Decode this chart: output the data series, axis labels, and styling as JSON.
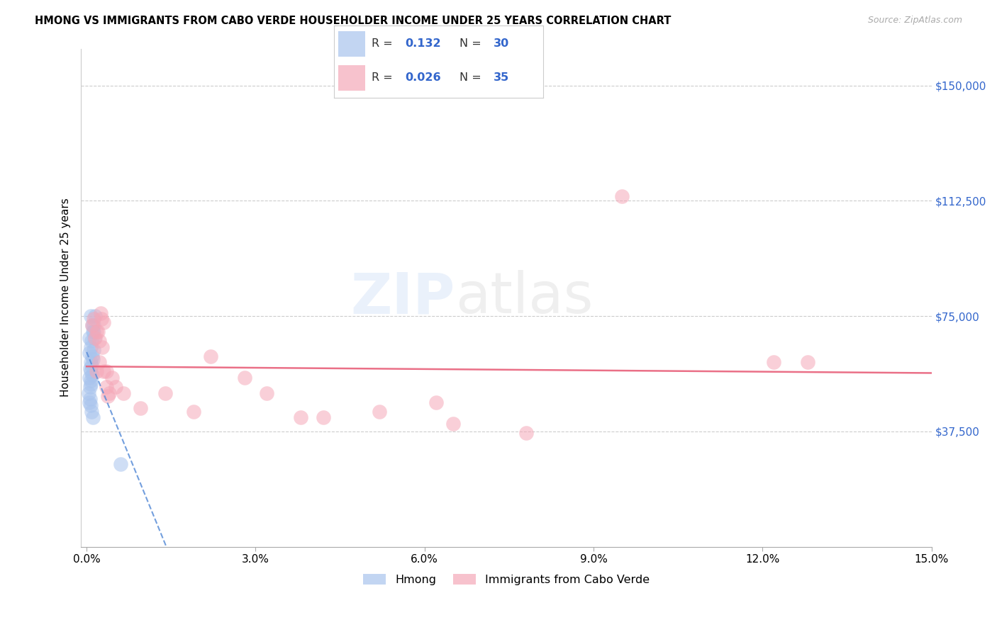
{
  "title": "HMONG VS IMMIGRANTS FROM CABO VERDE HOUSEHOLDER INCOME UNDER 25 YEARS CORRELATION CHART",
  "source": "Source: ZipAtlas.com",
  "ylabel": "Householder Income Under 25 years",
  "xlabel_ticks": [
    "0.0%",
    "3.0%",
    "6.0%",
    "9.0%",
    "12.0%",
    "15.0%"
  ],
  "xlabel_vals": [
    0.0,
    3.0,
    6.0,
    9.0,
    12.0,
    15.0
  ],
  "ytick_labels": [
    "$37,500",
    "$75,000",
    "$112,500",
    "$150,000"
  ],
  "ytick_vals": [
    37500,
    75000,
    112500,
    150000
  ],
  "ylim": [
    0,
    162000
  ],
  "xlim": [
    -0.1,
    15.0
  ],
  "legend1_R": "0.132",
  "legend1_N": "30",
  "legend2_R": "0.026",
  "legend2_N": "35",
  "blue_color": "#a8c4ed",
  "pink_color": "#f5a8b8",
  "blue_line_color": "#5b8ed8",
  "pink_line_color": "#e8607a",
  "grid_color": "#cccccc",
  "watermark": "ZIPatlas",
  "hmong_x": [
    0.05,
    0.08,
    0.1,
    0.12,
    0.05,
    0.07,
    0.09,
    0.11,
    0.13,
    0.15,
    0.06,
    0.08,
    0.1,
    0.12,
    0.14,
    0.05,
    0.07,
    0.09,
    0.11,
    0.06,
    0.08,
    0.1,
    0.04,
    0.06,
    0.08,
    0.05,
    0.07,
    0.09,
    0.11,
    0.6
  ],
  "hmong_y": [
    68000,
    75000,
    72000,
    70000,
    63000,
    65000,
    67000,
    70000,
    72000,
    75000,
    58000,
    60000,
    62000,
    64000,
    68000,
    55000,
    57000,
    59000,
    61000,
    52000,
    54000,
    56000,
    50000,
    48000,
    53000,
    47000,
    46000,
    44000,
    42000,
    27000
  ],
  "cabo_x": [
    0.1,
    0.15,
    0.12,
    0.2,
    0.25,
    0.3,
    0.18,
    0.22,
    0.28,
    0.35,
    0.4,
    0.22,
    0.3,
    0.45,
    0.38,
    2.2,
    2.8,
    4.2,
    6.2,
    5.2,
    7.8,
    3.2,
    3.8,
    0.18,
    0.26,
    0.35,
    0.52,
    0.65,
    0.95,
    1.4,
    1.9,
    6.5,
    9.5,
    12.2,
    12.8
  ],
  "cabo_y": [
    72000,
    68000,
    74000,
    70000,
    76000,
    73000,
    57000,
    60000,
    65000,
    52000,
    50000,
    67000,
    57000,
    55000,
    49000,
    62000,
    55000,
    42000,
    47000,
    44000,
    37000,
    50000,
    42000,
    70000,
    74000,
    57000,
    52000,
    50000,
    45000,
    50000,
    44000,
    40000,
    114000,
    60000,
    60000
  ]
}
